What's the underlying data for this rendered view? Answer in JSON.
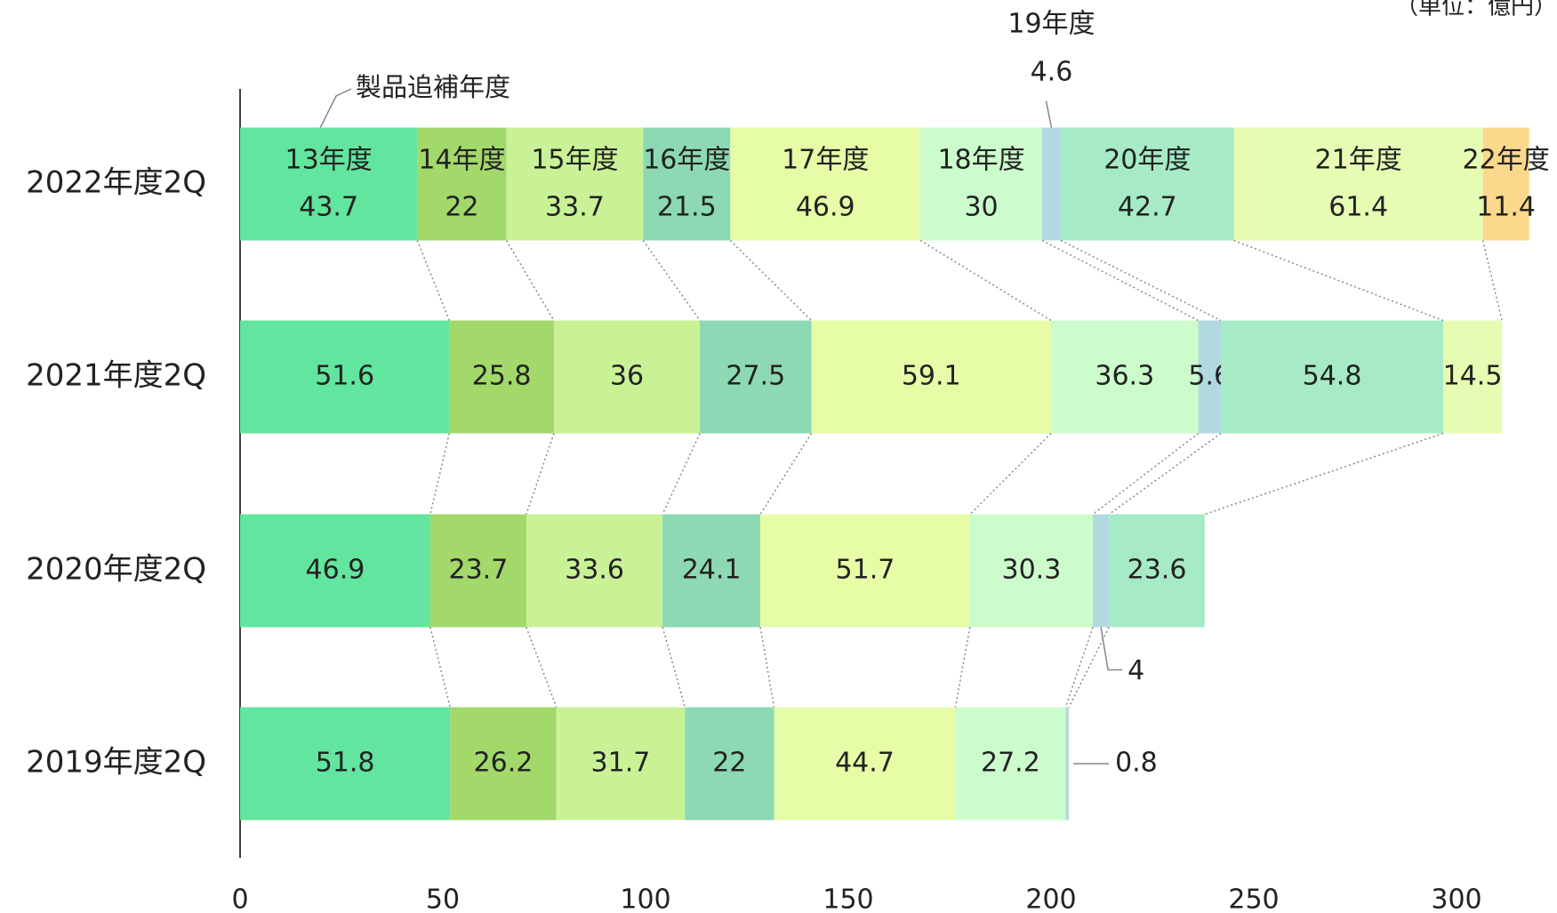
{
  "chart_data": {
    "type": "stacked_bar_horizontal",
    "categories": [
      "2022年度2Q",
      "2021年度2Q",
      "2020年度2Q",
      "2019年度2Q"
    ],
    "series": [
      {
        "name": "13年度",
        "color": "#62e59e",
        "values": [
          43.7,
          51.6,
          46.9,
          51.8
        ]
      },
      {
        "name": "14年度",
        "color": "#a3d86a",
        "values": [
          22.0,
          25.8,
          23.7,
          26.2
        ]
      },
      {
        "name": "15年度",
        "color": "#c9f296",
        "values": [
          33.7,
          36.0,
          33.6,
          31.7
        ]
      },
      {
        "name": "16年度",
        "color": "#8cd9b3",
        "values": [
          21.5,
          27.5,
          24.1,
          22.0
        ]
      },
      {
        "name": "17年度",
        "color": "#e6fca6",
        "values": [
          46.9,
          59.1,
          51.7,
          44.7
        ]
      },
      {
        "name": "18年度",
        "color": "#ccfccc",
        "values": [
          30.0,
          36.3,
          30.3,
          27.2
        ]
      },
      {
        "name": "19年度",
        "color": "#b3d9e0",
        "values": [
          4.6,
          5.6,
          4.0,
          0.8
        ]
      },
      {
        "name": "20年度",
        "color": "#a6ebc6",
        "values": [
          42.7,
          54.8,
          23.6,
          null
        ]
      },
      {
        "name": "21年度",
        "color": "#e6fcb3",
        "values": [
          61.4,
          14.5,
          null,
          null
        ]
      },
      {
        "name": "22年度",
        "color": "#fad98c",
        "values": [
          11.4,
          null,
          null,
          null
        ]
      }
    ],
    "xlim": [
      0,
      320
    ],
    "xticks": [
      0,
      50,
      100,
      150,
      200,
      250,
      300
    ],
    "unit_label": "（単位：億円）",
    "annotation": "製品追補年度"
  }
}
